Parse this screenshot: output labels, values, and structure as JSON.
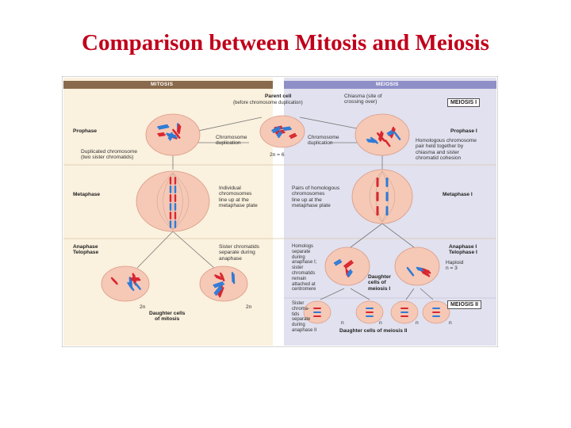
{
  "slide": {
    "title": "Comparison between Mitosis and Meiosis"
  },
  "figure": {
    "mitosis_header": "MITOSIS",
    "meiosis_header": "MEIOSIS",
    "parent_cell": "Parent cell",
    "parent_cell_note": "(before chromosome duplication)",
    "chiasma": "Chiasma (site of\ncrossing over)",
    "meiosis_i_box": "MEIOSIS I",
    "meiosis_ii_box": "MEIOSIS II",
    "prophase": "Prophase",
    "prophase_i": "Prophase I",
    "chromosome_duplication_left": "Chromosome\nduplication",
    "chromosome_duplication_right": "Chromosome\nduplication",
    "two_n_6": "2n = 6",
    "duplicated_chromosome": "Duplicated chromosome\n(two sister chromatids)",
    "homologous_pair": "Homologous chromosome\npair held together by\nchiasma and sister\nchromatid cohesion",
    "metaphase": "Metaphase",
    "metaphase_i": "Metaphase I",
    "individual_chromosomes": "Individual\nchromosomes\nline up at the\nmetaphase plate",
    "pairs_of_homologs": "Pairs of homologous\nchromosomes\nline up at the\nmetaphase plate",
    "anaphase_telophase": "Anaphase\nTelophase",
    "anaphase_telophase_i": "Anaphase I\nTelophase I",
    "sister_chromatids_separate": "Sister chromatids\nseparate during\nanaphase",
    "homologs_separate": "Homologs\nseparate\nduring\nanaphase I;\nsister\nchromatids\nremain\nattached at\ncentromere",
    "haploid": "Haploid\nn = 3",
    "daughter_cells_meiosis_i": "Daughter\ncells of\nmeiosis I",
    "two_n_left": "2n",
    "two_n_right": "2n",
    "daughter_cells_mitosis": "Daughter cells\nof mitosis",
    "sister_chromatids_separate_ii": "Sister\nchroma-\ntids\nseparate\nduring\nanaphase II",
    "n_label": "n",
    "daughter_cells_meiosis_ii": "Daughter cells of meiosis II",
    "colors": {
      "mitosis_header": "#8a6a4c",
      "meiosis_header": "#8f8fc8",
      "left_panel": "#faf1de",
      "right_panel": "#e1e1ef",
      "cell_fill": "#f6c8b6",
      "chrom_red": "#d8262f",
      "chrom_blue": "#2e7bd6"
    }
  }
}
